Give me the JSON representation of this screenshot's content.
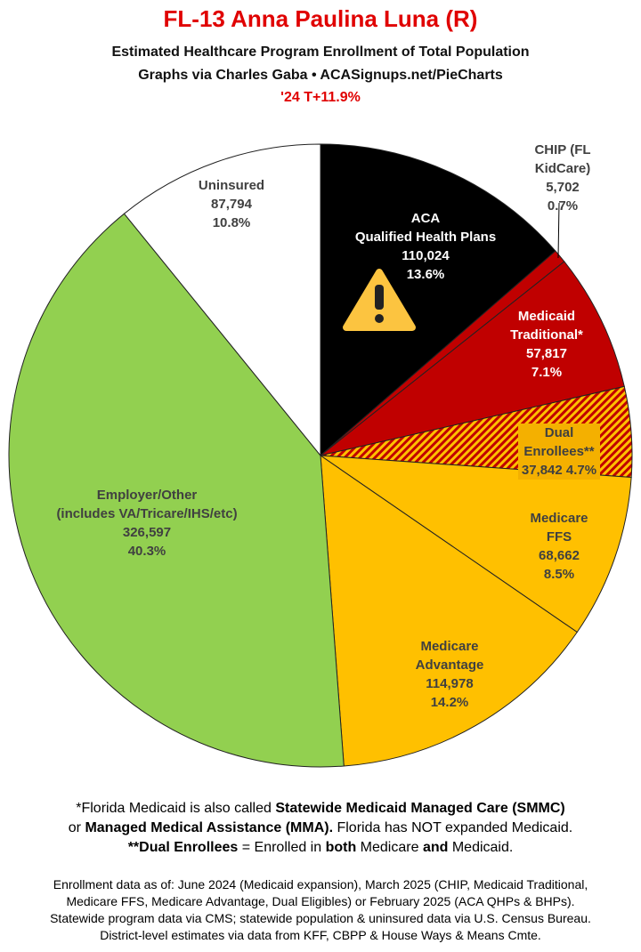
{
  "chart_data": {
    "type": "pie",
    "title": "FL-13 Anna Paulina Luna (R)",
    "subtitle": [
      "Estimated Healthcare Program Enrollment of Total Population",
      "Graphs via Charles Gaba  •  ACASignups.net/PieCharts",
      "'24 T+11.9%"
    ],
    "categories": [
      "ACA\nQualified Health Plans",
      "CHIP (FL KidCare)",
      "Medicaid\nTraditional*",
      "Dual Enrollees**",
      "Medicare FFS",
      "Medicare\nAdvantage",
      "Employer/Other\n(includes VA/Tricare/IHS/etc)",
      "Uninsured"
    ],
    "values": [
      110024,
      5702,
      57817,
      37842,
      68662,
      114978,
      326597,
      87794
    ],
    "value_labels": [
      "110,024",
      "5,702",
      "57,817",
      "37,842",
      "68,662",
      "114,978",
      "326,597",
      "87,794"
    ],
    "percent_labels": [
      "13.6%",
      "0.7%",
      "7.1%",
      "4.7%",
      "8.5%",
      "14.2%",
      "40.3%",
      "10.8%"
    ],
    "colors": [
      "#000000",
      "#c00000",
      "#c00000",
      "#ffc000",
      "#ffc000",
      "#ffc000",
      "#92d050",
      "#ffffff"
    ],
    "hatched": [
      false,
      false,
      false,
      true,
      false,
      false,
      false,
      false
    ],
    "footnotes": [
      [
        {
          "text": "*Florida Medicaid is also called ",
          "bold": false
        },
        {
          "text": "Statewide Medicaid Managed Care (SMMC)",
          "bold": true
        }
      ],
      [
        {
          "text": "or ",
          "bold": false
        },
        {
          "text": "Managed Medical Assistance (MMA).",
          "bold": true
        },
        {
          "text": " Florida has NOT expanded Medicaid.",
          "bold": false
        }
      ],
      [
        {
          "text": "**Dual Enrollees",
          "bold": true
        },
        {
          "text": " = Enrolled in ",
          "bold": false
        },
        {
          "text": "both",
          "bold": true
        },
        {
          "text": " Medicare ",
          "bold": false
        },
        {
          "text": "and",
          "bold": true
        },
        {
          "text": " Medicaid.",
          "bold": false
        }
      ]
    ],
    "sources": [
      "Enrollment data as of: June 2024 (Medicaid expansion), March 2025 (CHIP, Medicaid Traditional,",
      "Medicare FFS, Medicare Advantage, Dual Eligibles) or February 2025 (ACA QHPs & BHPs).",
      "Statewide program data via CMS; statewide population & uninsured data via U.S. Census Bureau.",
      "District-level estimates via data from KFF, CBPP & House Ways & Means Cmte."
    ]
  }
}
